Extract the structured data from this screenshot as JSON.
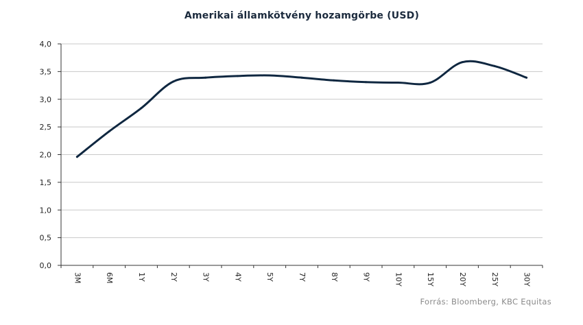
{
  "chart_data": {
    "type": "line",
    "title": "Amerikai államkötvény hozamgörbe (USD)",
    "xlabel": "",
    "ylabel": "",
    "categories": [
      "3M",
      "6M",
      "1Y",
      "2Y",
      "3Y",
      "4Y",
      "5Y",
      "7Y",
      "8Y",
      "9Y",
      "10Y",
      "15Y",
      "20Y",
      "25Y",
      "30Y"
    ],
    "values": [
      1.96,
      2.42,
      2.84,
      3.32,
      3.39,
      3.42,
      3.43,
      3.39,
      3.34,
      3.31,
      3.3,
      3.3,
      3.67,
      3.6,
      3.39
    ],
    "ylim": [
      0,
      4.0
    ],
    "yticks": [
      "0,0",
      "0,5",
      "1,0",
      "1,5",
      "2,0",
      "2,5",
      "3,0",
      "3,5",
      "4,0"
    ],
    "grid": true,
    "legend": "none",
    "line_color": "#0f2740"
  },
  "source": "Forrás: Bloomberg, KBC Equitas"
}
